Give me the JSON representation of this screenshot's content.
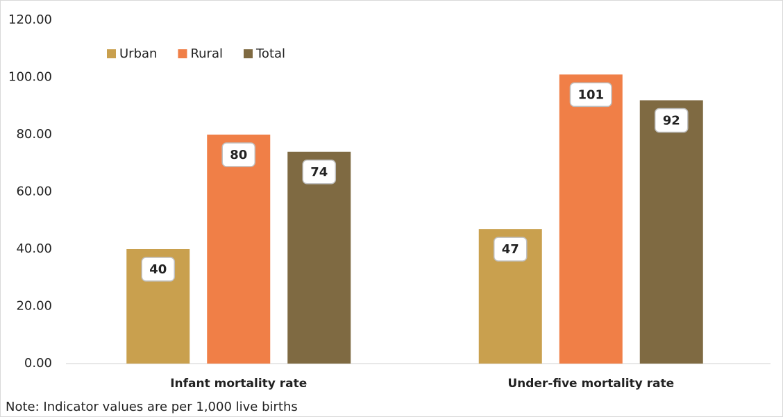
{
  "chart_data": {
    "type": "bar",
    "categories": [
      "Infant mortality rate",
      "Under-five mortality rate"
    ],
    "series": [
      {
        "name": "Urban",
        "color": "#c9a04e",
        "values": [
          40,
          47
        ]
      },
      {
        "name": "Rural",
        "color": "#f07f47",
        "values": [
          80,
          101
        ]
      },
      {
        "name": "Total",
        "color": "#7f6a42",
        "values": [
          74,
          92
        ]
      }
    ],
    "ylim": [
      0,
      120
    ],
    "yticks": [
      {
        "value": 0,
        "label": "0.00"
      },
      {
        "value": 20,
        "label": "20.00"
      },
      {
        "value": 40,
        "label": "40.00"
      },
      {
        "value": 60,
        "label": "60.00"
      },
      {
        "value": 80,
        "label": "80.00"
      },
      {
        "value": 100,
        "label": "100.00"
      },
      {
        "value": 120,
        "label": "120.00"
      }
    ],
    "note": "Note: Indicator values are per 1,000 live births",
    "legend": "top-left"
  }
}
